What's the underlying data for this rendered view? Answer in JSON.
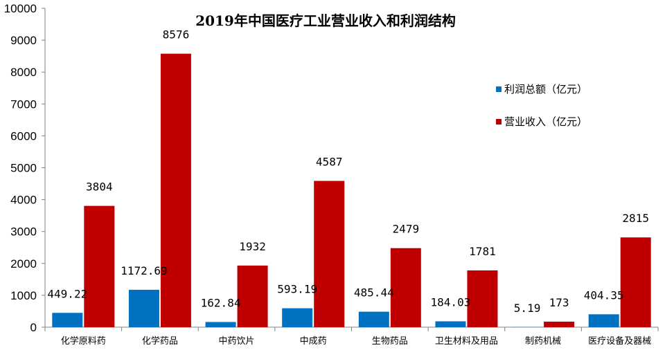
{
  "chart_data": {
    "type": "bar",
    "title": "2019年中国医疗工业营业收入和利润结构",
    "xlabel": "",
    "ylabel": "",
    "ylim": [
      0,
      10000
    ],
    "yticks": [
      0,
      1000,
      2000,
      3000,
      4000,
      5000,
      6000,
      7000,
      8000,
      9000,
      10000
    ],
    "grid": false,
    "legend_position": "right",
    "categories": [
      "化学原料药",
      "化学药品",
      "中药饮片",
      "中成药",
      "生物药品",
      "卫生材料及用品",
      "制药机械",
      "医疗设备及器械"
    ],
    "series": [
      {
        "name": "利润总额（亿元）",
        "color": "#0070C0",
        "values": [
          449.22,
          1172.69,
          162.84,
          593.19,
          485.44,
          184.03,
          5.19,
          404.35
        ],
        "labels": [
          "449.22",
          "1172.69",
          "162.84",
          "593.19",
          "485.44",
          "184.03",
          "5.19",
          "404.35"
        ]
      },
      {
        "name": "营业收入（亿元）",
        "color": "#C00000",
        "values": [
          3804,
          8576,
          1932,
          4587,
          2479,
          1781,
          173,
          2815
        ],
        "labels": [
          "3804",
          "8576",
          "1932",
          "4587",
          "2479",
          "1781",
          "173",
          "2815"
        ]
      }
    ]
  }
}
